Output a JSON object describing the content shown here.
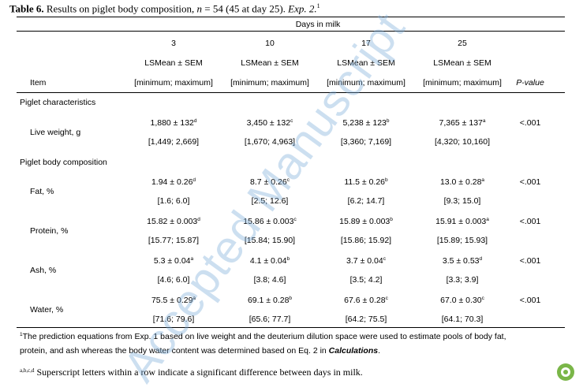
{
  "title": {
    "label": "Table 6.",
    "text_a": " Results on piglet body composition, ",
    "n": "n",
    "text_b": " = 54 (45 at day 25). ",
    "exp": "Exp. 2.",
    "sup": "1"
  },
  "header": {
    "group": "Days in milk",
    "days": [
      "3",
      "10",
      "17",
      "25"
    ],
    "stat": "LSMean ± SEM",
    "range": "[minimum; maximum]",
    "item": "Item",
    "pvalue": "P-value"
  },
  "sections": {
    "characteristics": "Piglet characteristics",
    "composition": "Piglet body composition"
  },
  "rows": [
    {
      "label": "Live weight, g",
      "means": [
        {
          "v": "1,880 ± 132",
          "s": "d"
        },
        {
          "v": "3,450 ± 132",
          "s": "c"
        },
        {
          "v": "5,238 ± 123",
          "s": "b"
        },
        {
          "v": "7,365 ± 137",
          "s": "a"
        }
      ],
      "ranges": [
        "[1,449; 2,669]",
        "[1,670; 4,963]",
        "[3,360; 7,169]",
        "[4,320; 10,160]"
      ],
      "p": "<.001"
    },
    {
      "label": "Fat, %",
      "means": [
        {
          "v": "1.94 ± 0.26",
          "s": "d"
        },
        {
          "v": "8.7 ± 0.26",
          "s": "c"
        },
        {
          "v": "11.5 ± 0.26",
          "s": "b"
        },
        {
          "v": "13.0 ± 0.28",
          "s": "a"
        }
      ],
      "ranges": [
        "[1.6; 6.0]",
        "[2.5; 12.6]",
        "[6.2; 14.7]",
        "[9.3; 15.0]"
      ],
      "p": "<.001"
    },
    {
      "label": "Protein, %",
      "means": [
        {
          "v": "15.82 ± 0.003",
          "s": "d"
        },
        {
          "v": "15.86 ± 0.003",
          "s": "c"
        },
        {
          "v": "15.89 ± 0.003",
          "s": "b"
        },
        {
          "v": "15.91 ± 0.003",
          "s": "a"
        }
      ],
      "ranges": [
        "[15.77; 15.87]",
        "[15.84; 15.90]",
        "[15.86; 15.92]",
        "[15.89; 15.93]"
      ],
      "p": "<.001"
    },
    {
      "label": "Ash, %",
      "means": [
        {
          "v": "5.3 ± 0.04",
          "s": "a"
        },
        {
          "v": "4.1 ± 0.04",
          "s": "b"
        },
        {
          "v": "3.7 ± 0.04",
          "s": "c"
        },
        {
          "v": "3.5 ± 0.53",
          "s": "d"
        }
      ],
      "ranges": [
        "[4.6; 6.0]",
        "[3.8; 4.6]",
        "[3.5; 4.2]",
        "[3.3; 3.9]"
      ],
      "p": "<.001"
    },
    {
      "label": "Water, %",
      "means": [
        {
          "v": "75.5 ± 0.29",
          "s": "a"
        },
        {
          "v": "69.1 ± 0.28",
          "s": "b"
        },
        {
          "v": "67.6 ± 0.28",
          "s": "c"
        },
        {
          "v": "67.0 ± 0.30",
          "s": "c"
        }
      ],
      "ranges": [
        "[71.6; 79.6]",
        "[65.6; 77.7]",
        "[64.2; 75.5]",
        "[64.1; 70.3]"
      ],
      "p": "<.001"
    }
  ],
  "footnotes": {
    "fn1_sup": "1",
    "fn1_line1": "The prediction equations from Exp. 1 based on live weight and the deuterium dilution space were used to estimate pools of body fat,",
    "fn1_line2a": "protein, and ash whereas the body water content was determined based on Eq. 2 in ",
    "fn1_line2b": "Calculations",
    "fn1_line2c": ".",
    "fn2_sup": "a,b,c,d",
    "fn2_text": "Superscript letters within a row indicate a significant difference between days in milk."
  },
  "watermark": "Accepted Manuscript",
  "colors": {
    "watermark": "#78aad7",
    "logo": "#7ab648"
  }
}
